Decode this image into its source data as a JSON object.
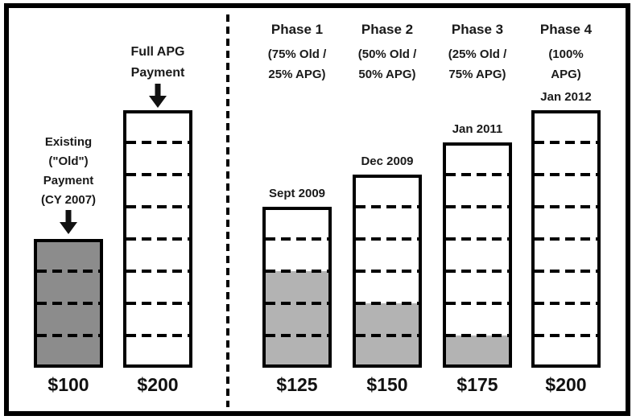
{
  "colors": {
    "old_fill": "#8c8c8c",
    "phase_old_fill": "#b3b3b3",
    "bar_border": "#000000",
    "text": "#1a1a1a",
    "background": "#ffffff"
  },
  "chart_data": {
    "type": "bar",
    "dollars_per_segment": 25,
    "ylim": [
      0,
      200
    ],
    "grid": "dashed segment lines every $25",
    "series": [
      {
        "id": "existing_old",
        "label_lines": [
          "Existing",
          "(\"Old\")",
          "Payment",
          "(CY 2007)"
        ],
        "value": 100,
        "value_label": "$100",
        "old_dollars": 100
      },
      {
        "id": "full_apg",
        "label_lines": [
          "Full APG",
          "Payment"
        ],
        "value": 200,
        "value_label": "$200",
        "old_dollars": 0
      },
      {
        "id": "phase_1",
        "header": "Phase 1",
        "mix_lines": [
          "(75% Old /",
          "25% APG)"
        ],
        "date": "Sept 2009",
        "value": 125,
        "value_label": "$125",
        "old_dollars": 75
      },
      {
        "id": "phase_2",
        "header": "Phase 2",
        "mix_lines": [
          "(50% Old /",
          "50% APG)"
        ],
        "date": "Dec 2009",
        "value": 150,
        "value_label": "$150",
        "old_dollars": 50
      },
      {
        "id": "phase_3",
        "header": "Phase 3",
        "mix_lines": [
          "(25% Old /",
          "75% APG)"
        ],
        "date": "Jan 2011",
        "value": 175,
        "value_label": "$175",
        "old_dollars": 25
      },
      {
        "id": "phase_4",
        "header": "Phase 4",
        "mix_lines": [
          "(100%",
          "APG)"
        ],
        "date": "Jan 2012",
        "value": 200,
        "value_label": "$200",
        "old_dollars": 0
      }
    ]
  }
}
